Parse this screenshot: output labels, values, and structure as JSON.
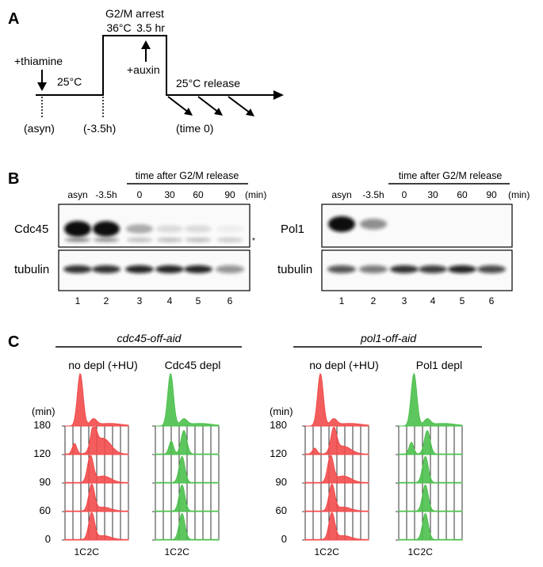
{
  "panels": {
    "A": {
      "letter": "A",
      "thiamine": "+thiamine",
      "temp_25": "25°C",
      "asyn": "(asyn)",
      "minus35": "(-3.5h)",
      "g2m_arrest": "G2/M arrest",
      "temp_36": "36°C",
      "duration": "3.5 hr",
      "auxin": "+auxin",
      "release": "25°C release",
      "time0": "(time 0)"
    },
    "B": {
      "letter": "B",
      "time_header": "time after G2/M release",
      "unit": "(min)",
      "col_labels": [
        "asyn",
        "-3.5h",
        "0",
        "30",
        "60",
        "90"
      ],
      "lane_numbers": [
        "1",
        "2",
        "3",
        "4",
        "5",
        "6"
      ],
      "left": {
        "protein": "Cdc45",
        "loading": "tubulin",
        "asterisk": "*",
        "band_intensity": [
          1.0,
          0.95,
          0.3,
          0.12,
          0.12,
          0.05
        ],
        "tubulin_intensity": [
          0.85,
          0.85,
          0.9,
          0.9,
          0.9,
          0.45
        ]
      },
      "right": {
        "protein": "Pol1",
        "loading": "tubulin",
        "band_intensity": [
          1.0,
          0.45,
          0.0,
          0.0,
          0.0,
          0.0
        ],
        "tubulin_intensity": [
          0.7,
          0.55,
          0.85,
          0.8,
          0.9,
          0.75
        ]
      }
    },
    "C": {
      "letter": "C",
      "min_label": "(min)",
      "times": [
        "180",
        "120",
        "90",
        "60",
        "0"
      ],
      "x_ticks": [
        "1C",
        "2C"
      ],
      "groups": [
        {
          "strain": "cdc45-off-aid",
          "cond_a": "no depl (+HU)",
          "cond_b": "Cdc45 depl"
        },
        {
          "strain": "pol1-off-aid",
          "cond_a": "no depl (+HU)",
          "cond_b": "Pol1 depl"
        }
      ],
      "colors": {
        "no_depl": "#f24b4b",
        "depl": "#4cc04c"
      }
    }
  }
}
